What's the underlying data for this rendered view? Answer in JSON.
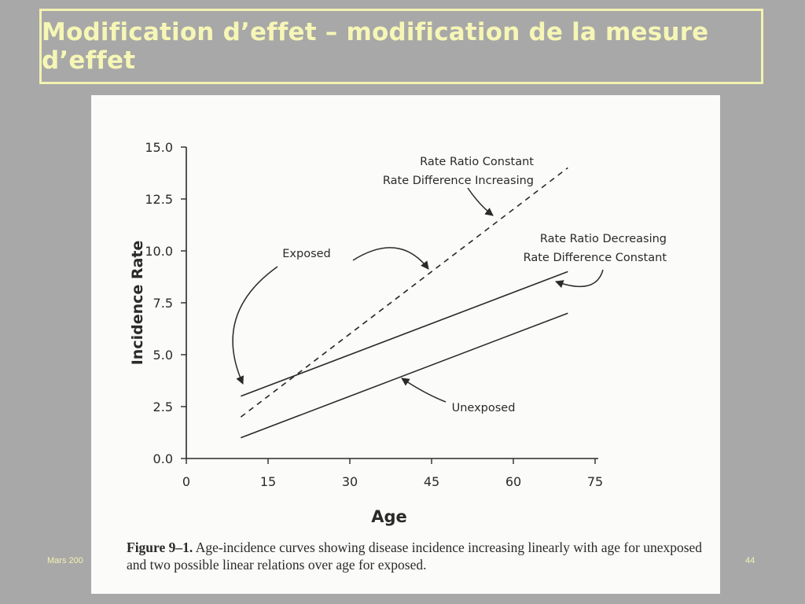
{
  "slide": {
    "title": "Modification d’effet – modification de la mesure d’effet",
    "footer_left": "Mars 200",
    "page_number": "44"
  },
  "caption": {
    "lead": "Figure 9–1.",
    "text": "Age-incidence curves showing disease incidence increasing linearly with age for unexposed and two possible linear relations over age for exposed."
  },
  "colors": {
    "background": "#a8a8a8",
    "title": "#f6f6b6",
    "ink": "#2a2a2a"
  },
  "chart_data": {
    "type": "line",
    "xlabel": "Age",
    "ylabel": "Incidence Rate",
    "xlim": [
      0,
      75
    ],
    "ylim": [
      0,
      15
    ],
    "xticks": [
      "0",
      "15",
      "30",
      "45",
      "60",
      "75"
    ],
    "yticks": [
      "0.0",
      "2.5",
      "5.0",
      "7.5",
      "10.0",
      "12.5",
      "15.0"
    ],
    "series": [
      {
        "name": "Unexposed",
        "style": "solid",
        "x": [
          10,
          70
        ],
        "y": [
          1.0,
          7.0
        ]
      },
      {
        "name": "Exposed",
        "style": "solid",
        "x": [
          10,
          70
        ],
        "y": [
          3.0,
          9.0
        ]
      },
      {
        "name": "Exposed",
        "style": "dashed",
        "x": [
          10,
          70
        ],
        "y": [
          2.0,
          14.0
        ]
      }
    ],
    "annotations": [
      {
        "id": "rr-constant",
        "lines": [
          "Rate Ratio Constant",
          "Rate Difference Increasing"
        ]
      },
      {
        "id": "rr-decreasing",
        "lines": [
          "Rate Ratio Decreasing",
          "Rate Difference Constant"
        ]
      },
      {
        "id": "exposed",
        "lines": [
          "Exposed"
        ]
      },
      {
        "id": "unexposed",
        "lines": [
          "Unexposed"
        ]
      }
    ]
  }
}
